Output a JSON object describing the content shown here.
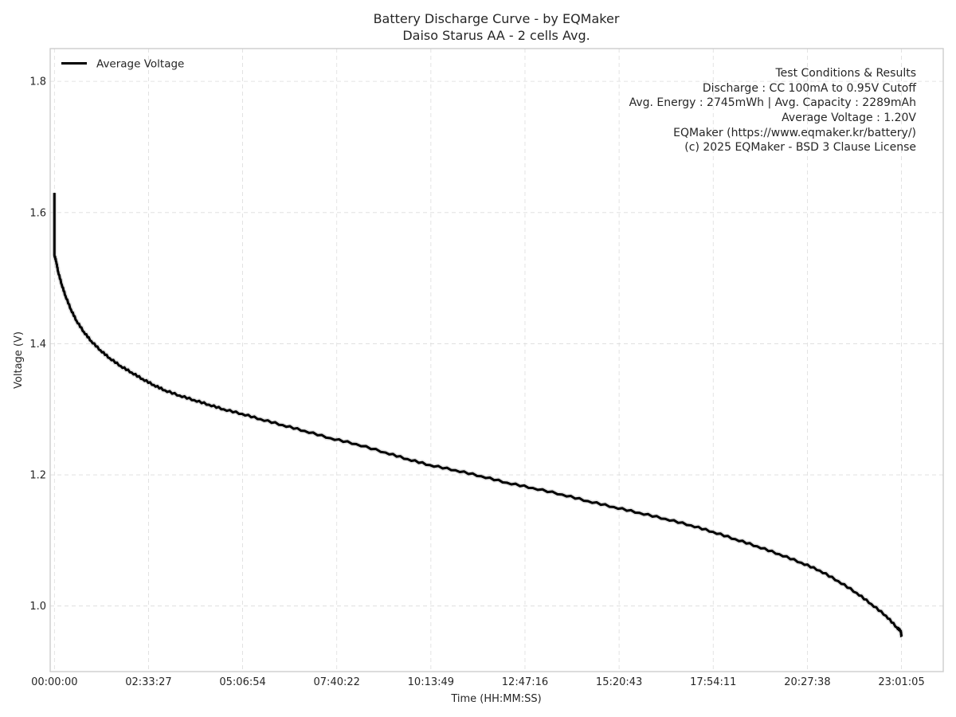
{
  "chart_data": {
    "type": "line",
    "title": "Battery Discharge Curve - by EQMaker",
    "subtitle": "Daiso Starus AA - 2 cells Avg.",
    "xlabel": "Time (HH:MM:SS)",
    "ylabel": "Voltage (V)",
    "x_unit": "hours",
    "xlim": [
      -0.115,
      24.154
    ],
    "ylim": [
      0.9,
      1.85
    ],
    "x_ticks": [
      {
        "value": 0.0,
        "label": "00:00:00"
      },
      {
        "value": 2.5575,
        "label": "02:33:27"
      },
      {
        "value": 5.115,
        "label": "05:06:54"
      },
      {
        "value": 7.6728,
        "label": "07:40:22"
      },
      {
        "value": 10.2303,
        "label": "10:13:49"
      },
      {
        "value": 12.7878,
        "label": "12:47:16"
      },
      {
        "value": 15.3453,
        "label": "15:20:43"
      },
      {
        "value": 17.9031,
        "label": "17:54:11"
      },
      {
        "value": 20.4606,
        "label": "20:27:38"
      },
      {
        "value": 23.0181,
        "label": "23:01:05"
      }
    ],
    "y_ticks": [
      {
        "value": 1.0,
        "label": "1.0"
      },
      {
        "value": 1.2,
        "label": "1.2"
      },
      {
        "value": 1.4,
        "label": "1.4"
      },
      {
        "value": 1.6,
        "label": "1.6"
      },
      {
        "value": 1.8,
        "label": "1.8"
      }
    ],
    "grid": true,
    "legend_position": "top-left",
    "series": [
      {
        "name": "Average Voltage",
        "color": "#000000",
        "points": [
          [
            0.0,
            1.63
          ],
          [
            0.0,
            1.535
          ],
          [
            0.05,
            1.525
          ],
          [
            0.1,
            1.51
          ],
          [
            0.2,
            1.49
          ],
          [
            0.3,
            1.473
          ],
          [
            0.45,
            1.452
          ],
          [
            0.6,
            1.435
          ],
          [
            0.8,
            1.418
          ],
          [
            1.0,
            1.404
          ],
          [
            1.25,
            1.39
          ],
          [
            1.5,
            1.378
          ],
          [
            1.8,
            1.366
          ],
          [
            2.1,
            1.356
          ],
          [
            2.4,
            1.346
          ],
          [
            2.7,
            1.337
          ],
          [
            3.0,
            1.329
          ],
          [
            3.4,
            1.321
          ],
          [
            3.8,
            1.314
          ],
          [
            4.2,
            1.307
          ],
          [
            4.6,
            1.3
          ],
          [
            5.1,
            1.293
          ],
          [
            5.6,
            1.285
          ],
          [
            6.2,
            1.276
          ],
          [
            6.8,
            1.267
          ],
          [
            7.5,
            1.256
          ],
          [
            8.2,
            1.247
          ],
          [
            9.0,
            1.234
          ],
          [
            9.6,
            1.224
          ],
          [
            10.2,
            1.215
          ],
          [
            10.9,
            1.207
          ],
          [
            11.6,
            1.198
          ],
          [
            12.3,
            1.188
          ],
          [
            13.0,
            1.18
          ],
          [
            13.8,
            1.17
          ],
          [
            14.5,
            1.16
          ],
          [
            15.2,
            1.151
          ],
          [
            15.9,
            1.142
          ],
          [
            16.6,
            1.133
          ],
          [
            17.3,
            1.123
          ],
          [
            17.9,
            1.113
          ],
          [
            18.5,
            1.102
          ],
          [
            19.1,
            1.091
          ],
          [
            19.7,
            1.079
          ],
          [
            20.3,
            1.066
          ],
          [
            20.8,
            1.054
          ],
          [
            21.3,
            1.038
          ],
          [
            21.8,
            1.02
          ],
          [
            22.2,
            1.003
          ],
          [
            22.6,
            0.985
          ],
          [
            22.9,
            0.967
          ],
          [
            23.0,
            0.962
          ],
          [
            23.02,
            0.953
          ]
        ]
      }
    ],
    "annotation_lines": [
      "Test Conditions & Results",
      "Discharge : CC 100mA to 0.95V Cutoff",
      "Avg. Energy : 2745mWh | Avg. Capacity : 2289mAh",
      "Average Voltage : 1.20V",
      "EQMaker (https://www.eqmaker.kr/battery/)",
      "(c) 2025 EQMaker - BSD 3 Clause License"
    ]
  }
}
